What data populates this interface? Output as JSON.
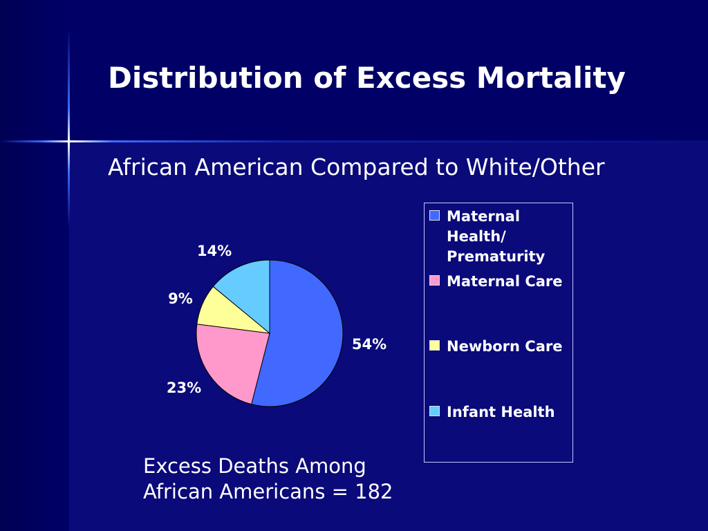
{
  "slide": {
    "title": "Distribution of Excess Mortality",
    "subtitle": "African American Compared to White/Other",
    "footnote": {
      "line1": "Excess Deaths Among",
      "line2": "African Americans = 182"
    }
  },
  "chart_data": {
    "type": "pie",
    "title": "",
    "slices": [
      {
        "name": "Maternal Health/ Prematurity",
        "value": 54,
        "label": "54%",
        "color": "#4169ff"
      },
      {
        "name": "Maternal Care",
        "value": 23,
        "label": "23%",
        "color": "#ff99cc"
      },
      {
        "name": "Newborn Care",
        "value": 9,
        "label": "9%",
        "color": "#ffff99"
      },
      {
        "name": "Infant Health",
        "value": 14,
        "label": "14%",
        "color": "#66ccff"
      }
    ],
    "legend_position": "right"
  },
  "legend": {
    "items": [
      {
        "lines": [
          "Maternal",
          "Health/",
          "Prematurity"
        ],
        "color": "#4169ff"
      },
      {
        "lines": [
          "Maternal Care"
        ],
        "color": "#ff99cc"
      },
      {
        "lines": [
          "Newborn Care"
        ],
        "color": "#ffff99"
      },
      {
        "lines": [
          "Infant Health"
        ],
        "color": "#66ccff"
      }
    ]
  }
}
